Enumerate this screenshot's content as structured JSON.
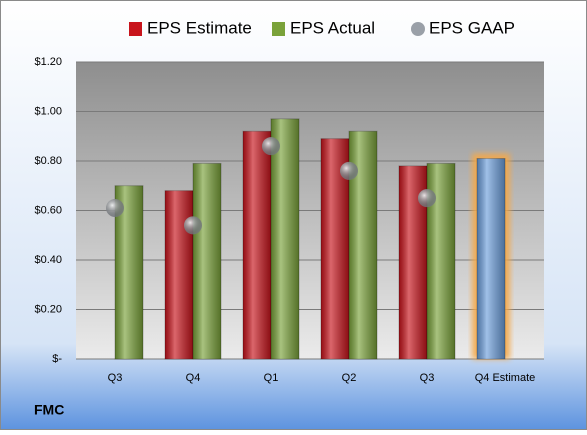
{
  "chart_data": {
    "type": "bar",
    "title": "FMC",
    "categories": [
      "Q3",
      "Q4",
      "Q1",
      "Q2",
      "Q3",
      "Q4 Estimate"
    ],
    "series": [
      {
        "name": "EPS Estimate",
        "color": "#c8141c",
        "type": "bar",
        "values": [
          null,
          0.68,
          0.92,
          0.89,
          0.78,
          0.81
        ],
        "point_colors": [
          "#c8141c",
          "#c8141c",
          "#c8141c",
          "#c8141c",
          "#c8141c",
          "#6d9fdc"
        ]
      },
      {
        "name": "EPS Actual",
        "color": "#7aa23a",
        "type": "bar",
        "values": [
          0.7,
          0.79,
          0.97,
          0.92,
          0.79,
          null
        ]
      },
      {
        "name": "EPS GAAP",
        "color": "#9aa0a8",
        "type": "scatter",
        "values": [
          0.61,
          0.54,
          0.86,
          0.76,
          0.65,
          null
        ]
      }
    ],
    "glow_color": "#f5a94a",
    "ylim": [
      0,
      1.2
    ],
    "yticks": [
      {
        "value": 0,
        "label": "$-"
      },
      {
        "value": 0.2,
        "label": "$0.20"
      },
      {
        "value": 0.4,
        "label": "$0.40"
      },
      {
        "value": 0.6,
        "label": "$0.60"
      },
      {
        "value": 0.8,
        "label": "$0.80"
      },
      {
        "value": 1.0,
        "label": "$1.00"
      },
      {
        "value": 1.2,
        "label": "$1.20"
      }
    ],
    "grid": true
  }
}
